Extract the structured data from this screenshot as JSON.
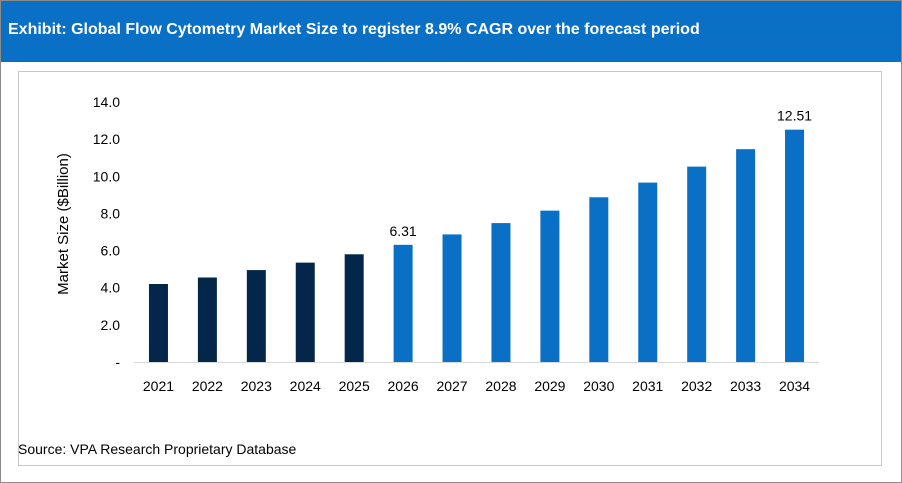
{
  "header": {
    "title": "Exhibit: Global Flow Cytometry Market Size to register 8.9% CAGR over the forecast period"
  },
  "source": "Source: VPA Research Proprietary Database",
  "colors": {
    "header_bg": "#0a70c6",
    "historical_bar": "#03264a",
    "forecast_bar": "#0a70c6",
    "axis_line": "#d9d9d9"
  },
  "chart_data": {
    "type": "bar",
    "categories": [
      "2021",
      "2022",
      "2023",
      "2024",
      "2025",
      "2026",
      "2027",
      "2028",
      "2029",
      "2030",
      "2031",
      "2032",
      "2033",
      "2034"
    ],
    "values": [
      4.2,
      4.55,
      4.95,
      5.35,
      5.8,
      6.31,
      6.87,
      7.48,
      8.15,
      8.87,
      9.66,
      10.52,
      11.46,
      12.51
    ],
    "bar_colors": [
      "#03264a",
      "#03264a",
      "#03264a",
      "#03264a",
      "#03264a",
      "#0a70c6",
      "#0a70c6",
      "#0a70c6",
      "#0a70c6",
      "#0a70c6",
      "#0a70c6",
      "#0a70c6",
      "#0a70c6",
      "#0a70c6"
    ],
    "data_labels": [
      "",
      "",
      "",
      "",
      "",
      "6.31",
      "",
      "",
      "",
      "",
      "",
      "",
      "",
      "12.51"
    ],
    "ylabel": "Market Size ($Billion)",
    "xlabel": "",
    "ylim": [
      0,
      14
    ],
    "yticks": [
      0,
      2,
      4,
      6,
      8,
      10,
      12,
      14
    ],
    "ytick_labels": [
      "-",
      "2.0",
      "4.0",
      "6.0",
      "8.0",
      "10.0",
      "12.0",
      "14.0"
    ],
    "grid": false,
    "legend": "none"
  }
}
